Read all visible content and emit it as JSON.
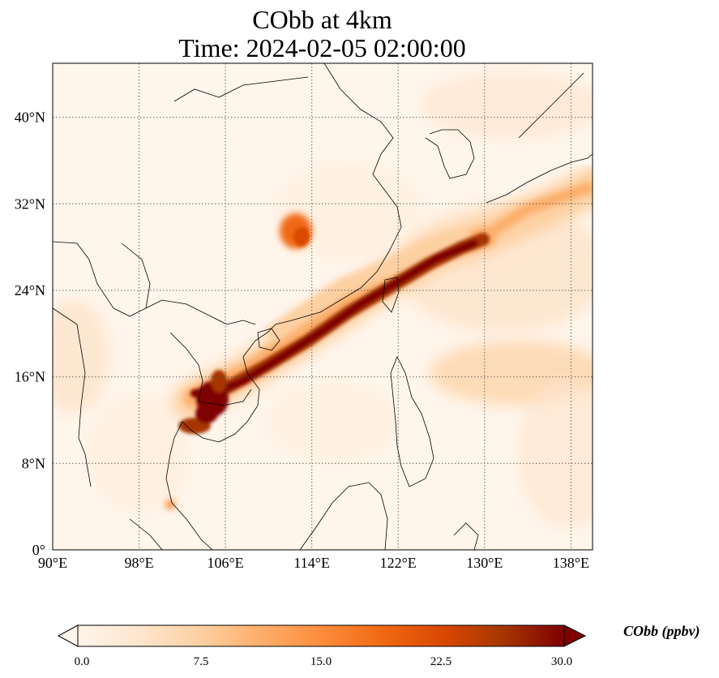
{
  "title": {
    "line1": "CObb at 4km",
    "line2": "Time: 2024-02-05 02:00:00"
  },
  "map": {
    "lon_range": [
      90,
      140
    ],
    "lat_range": [
      0,
      45
    ],
    "lon_ticks": [
      "90°E",
      "98°E",
      "106°E",
      "114°E",
      "122°E",
      "130°E",
      "138°E"
    ],
    "lat_ticks": [
      "0°",
      "8°N",
      "16°N",
      "24°N",
      "32°N",
      "40°N"
    ],
    "gridlines": "dotted"
  },
  "colorbar": {
    "label": "CObb (ppbv)",
    "ticks": [
      "0.0",
      "7.5",
      "15.0",
      "22.5",
      "30.0"
    ],
    "min": 0,
    "max": 30,
    "colors": [
      "#fff5eb",
      "#fee6ce",
      "#fdd0a2",
      "#fdae6b",
      "#fd8d3c",
      "#f16913",
      "#d94801",
      "#a63603",
      "#7f0000"
    ],
    "extend": "both"
  }
}
